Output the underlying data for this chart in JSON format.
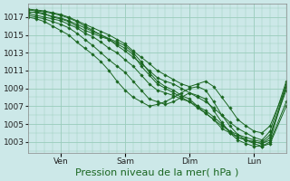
{
  "bg_color": "#cce8e8",
  "plot_bg_color": "#cce8e8",
  "grid_color": "#99ccbb",
  "line_color": "#1a6620",
  "marker_color": "#1a6620",
  "xlabel": "Pression niveau de la mer( hPa )",
  "xlabel_fontsize": 8,
  "tick_fontsize": 6.5,
  "yticks": [
    1003,
    1005,
    1007,
    1009,
    1011,
    1013,
    1015,
    1017
  ],
  "ylim": [
    1001.8,
    1018.5
  ],
  "xlim": [
    0,
    96
  ],
  "xtick_positions": [
    12,
    36,
    60,
    84
  ],
  "xtick_labels": [
    "Ven",
    "Sam",
    "Dim",
    "Lun"
  ],
  "series": [
    [
      [
        0,
        1017.5
      ],
      [
        3,
        1017.6
      ],
      [
        6,
        1017.4
      ],
      [
        9,
        1017.0
      ],
      [
        12,
        1016.8
      ],
      [
        15,
        1016.5
      ],
      [
        18,
        1016.0
      ],
      [
        21,
        1015.5
      ],
      [
        24,
        1015.2
      ],
      [
        27,
        1014.8
      ],
      [
        30,
        1014.5
      ],
      [
        33,
        1014.0
      ],
      [
        36,
        1013.5
      ],
      [
        39,
        1012.8
      ],
      [
        42,
        1011.5
      ],
      [
        45,
        1010.5
      ],
      [
        48,
        1009.5
      ],
      [
        51,
        1009.0
      ],
      [
        54,
        1008.5
      ],
      [
        57,
        1008.0
      ],
      [
        60,
        1007.5
      ],
      [
        63,
        1006.8
      ],
      [
        66,
        1006.2
      ],
      [
        69,
        1005.5
      ],
      [
        72,
        1004.8
      ],
      [
        75,
        1004.2
      ],
      [
        78,
        1003.5
      ],
      [
        81,
        1003.2
      ],
      [
        84,
        1003.0
      ],
      [
        87,
        1002.8
      ],
      [
        90,
        1003.2
      ],
      [
        96,
        1009.2
      ]
    ],
    [
      [
        0,
        1017.6
      ],
      [
        3,
        1017.5
      ],
      [
        6,
        1017.3
      ],
      [
        9,
        1017.1
      ],
      [
        12,
        1016.9
      ],
      [
        15,
        1016.6
      ],
      [
        18,
        1016.2
      ],
      [
        21,
        1015.8
      ],
      [
        24,
        1015.4
      ],
      [
        27,
        1015.0
      ],
      [
        30,
        1014.6
      ],
      [
        33,
        1014.2
      ],
      [
        36,
        1013.8
      ],
      [
        39,
        1013.0
      ],
      [
        42,
        1012.0
      ],
      [
        45,
        1010.8
      ],
      [
        48,
        1009.8
      ],
      [
        51,
        1009.2
      ],
      [
        54,
        1008.8
      ],
      [
        57,
        1008.2
      ],
      [
        60,
        1007.8
      ],
      [
        63,
        1007.0
      ],
      [
        66,
        1006.2
      ],
      [
        69,
        1005.5
      ],
      [
        72,
        1004.5
      ],
      [
        75,
        1004.0
      ],
      [
        78,
        1003.5
      ],
      [
        81,
        1003.2
      ],
      [
        84,
        1003.0
      ],
      [
        87,
        1002.8
      ],
      [
        90,
        1003.5
      ],
      [
        96,
        1009.5
      ]
    ],
    [
      [
        0,
        1017.4
      ],
      [
        3,
        1017.2
      ],
      [
        6,
        1017.0
      ],
      [
        9,
        1016.8
      ],
      [
        12,
        1016.6
      ],
      [
        15,
        1016.2
      ],
      [
        18,
        1015.8
      ],
      [
        21,
        1015.2
      ],
      [
        24,
        1014.8
      ],
      [
        27,
        1014.2
      ],
      [
        30,
        1013.5
      ],
      [
        33,
        1013.0
      ],
      [
        36,
        1012.2
      ],
      [
        39,
        1011.5
      ],
      [
        42,
        1010.5
      ],
      [
        45,
        1009.5
      ],
      [
        48,
        1008.8
      ],
      [
        51,
        1008.5
      ],
      [
        54,
        1008.2
      ],
      [
        57,
        1007.8
      ],
      [
        60,
        1007.5
      ],
      [
        63,
        1007.0
      ],
      [
        66,
        1006.5
      ],
      [
        69,
        1005.8
      ],
      [
        72,
        1005.0
      ],
      [
        75,
        1004.2
      ],
      [
        78,
        1003.8
      ],
      [
        81,
        1003.5
      ],
      [
        84,
        1003.2
      ],
      [
        87,
        1003.0
      ],
      [
        90,
        1003.8
      ],
      [
        96,
        1008.8
      ]
    ],
    [
      [
        0,
        1017.8
      ],
      [
        3,
        1017.7
      ],
      [
        6,
        1017.6
      ],
      [
        9,
        1017.4
      ],
      [
        12,
        1017.2
      ],
      [
        15,
        1016.9
      ],
      [
        18,
        1016.5
      ],
      [
        21,
        1016.0
      ],
      [
        24,
        1015.5
      ],
      [
        27,
        1015.0
      ],
      [
        30,
        1014.5
      ],
      [
        33,
        1013.8
      ],
      [
        36,
        1013.2
      ],
      [
        39,
        1012.5
      ],
      [
        42,
        1011.8
      ],
      [
        45,
        1011.0
      ],
      [
        48,
        1010.2
      ],
      [
        51,
        1009.8
      ],
      [
        54,
        1009.5
      ],
      [
        57,
        1009.0
      ],
      [
        60,
        1008.5
      ],
      [
        63,
        1008.0
      ],
      [
        66,
        1007.5
      ],
      [
        69,
        1006.8
      ],
      [
        72,
        1006.0
      ],
      [
        75,
        1005.2
      ],
      [
        78,
        1004.5
      ],
      [
        81,
        1004.0
      ],
      [
        84,
        1003.5
      ],
      [
        87,
        1003.2
      ],
      [
        90,
        1004.2
      ],
      [
        96,
        1009.8
      ]
    ],
    [
      [
        0,
        1017.2
      ],
      [
        3,
        1017.0
      ],
      [
        6,
        1016.8
      ],
      [
        9,
        1016.5
      ],
      [
        12,
        1016.2
      ],
      [
        15,
        1015.8
      ],
      [
        18,
        1015.2
      ],
      [
        21,
        1014.5
      ],
      [
        24,
        1013.8
      ],
      [
        27,
        1013.0
      ],
      [
        30,
        1012.2
      ],
      [
        33,
        1011.5
      ],
      [
        36,
        1010.8
      ],
      [
        39,
        1009.8
      ],
      [
        42,
        1008.8
      ],
      [
        45,
        1007.8
      ],
      [
        48,
        1007.5
      ],
      [
        51,
        1007.2
      ],
      [
        54,
        1007.5
      ],
      [
        57,
        1008.0
      ],
      [
        60,
        1008.5
      ],
      [
        63,
        1008.2
      ],
      [
        66,
        1007.8
      ],
      [
        69,
        1006.5
      ],
      [
        72,
        1005.2
      ],
      [
        75,
        1004.0
      ],
      [
        78,
        1003.2
      ],
      [
        81,
        1002.8
      ],
      [
        84,
        1002.5
      ],
      [
        87,
        1002.5
      ],
      [
        90,
        1003.0
      ],
      [
        96,
        1007.5
      ]
    ],
    [
      [
        0,
        1017.0
      ],
      [
        3,
        1016.8
      ],
      [
        6,
        1016.5
      ],
      [
        9,
        1016.0
      ],
      [
        12,
        1015.5
      ],
      [
        15,
        1015.0
      ],
      [
        18,
        1014.2
      ],
      [
        21,
        1013.5
      ],
      [
        24,
        1012.8
      ],
      [
        27,
        1012.0
      ],
      [
        30,
        1011.0
      ],
      [
        33,
        1009.8
      ],
      [
        36,
        1008.8
      ],
      [
        39,
        1008.0
      ],
      [
        42,
        1007.5
      ],
      [
        45,
        1007.0
      ],
      [
        48,
        1007.2
      ],
      [
        51,
        1007.5
      ],
      [
        54,
        1008.0
      ],
      [
        57,
        1008.5
      ],
      [
        60,
        1009.0
      ],
      [
        63,
        1009.2
      ],
      [
        66,
        1008.8
      ],
      [
        69,
        1007.5
      ],
      [
        72,
        1006.0
      ],
      [
        75,
        1004.8
      ],
      [
        78,
        1003.8
      ],
      [
        81,
        1003.2
      ],
      [
        84,
        1002.8
      ],
      [
        87,
        1002.5
      ],
      [
        90,
        1002.8
      ],
      [
        96,
        1007.0
      ]
    ],
    [
      [
        0,
        1017.9
      ],
      [
        3,
        1017.8
      ],
      [
        6,
        1017.7
      ],
      [
        9,
        1017.5
      ],
      [
        12,
        1017.3
      ],
      [
        15,
        1017.0
      ],
      [
        18,
        1016.6
      ],
      [
        21,
        1016.2
      ],
      [
        24,
        1015.8
      ],
      [
        27,
        1015.4
      ],
      [
        30,
        1015.0
      ],
      [
        33,
        1014.5
      ],
      [
        36,
        1014.0
      ],
      [
        39,
        1013.2
      ],
      [
        42,
        1012.5
      ],
      [
        45,
        1011.8
      ],
      [
        48,
        1011.0
      ],
      [
        51,
        1010.5
      ],
      [
        54,
        1010.0
      ],
      [
        57,
        1009.5
      ],
      [
        60,
        1009.2
      ],
      [
        63,
        1009.5
      ],
      [
        66,
        1009.8
      ],
      [
        69,
        1009.2
      ],
      [
        72,
        1008.0
      ],
      [
        75,
        1006.8
      ],
      [
        78,
        1005.5
      ],
      [
        81,
        1004.8
      ],
      [
        84,
        1004.2
      ],
      [
        87,
        1004.0
      ],
      [
        90,
        1004.8
      ],
      [
        96,
        1009.2
      ]
    ]
  ]
}
